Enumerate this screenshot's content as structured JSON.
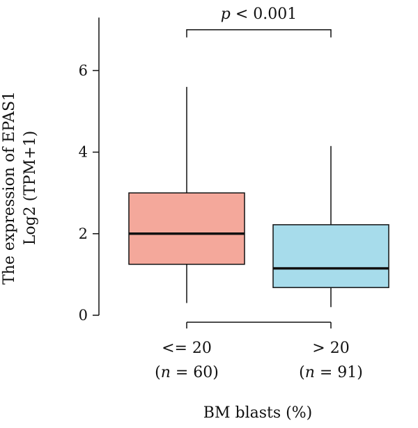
{
  "chart_data": {
    "type": "box",
    "xlabel": "BM blasts (%)",
    "ylabel_line1": "The expression of EPAS1",
    "ylabel_line2": "Log2 (TPM+1)",
    "ylim": [
      0,
      7.3
    ],
    "yticks": [
      0,
      2,
      4,
      6
    ],
    "grid": false,
    "legend": "none",
    "categories": [
      {
        "label": "<= 20",
        "n_text_prefix": "(",
        "n_symbol": "n",
        "n_text_suffix": " = 60)",
        "color": "#F4A89B",
        "whisker_low": 0.3,
        "q1": 1.25,
        "median": 2.0,
        "q3": 3.0,
        "whisker_high": 5.6
      },
      {
        "label": "> 20",
        "n_text_prefix": "(",
        "n_symbol": "n",
        "n_text_suffix": " = 91)",
        "color": "#A7DCEB",
        "whisker_low": 0.2,
        "q1": 0.68,
        "median": 1.15,
        "q3": 2.22,
        "whisker_high": 4.15
      }
    ],
    "significance": {
      "symbol": "p",
      "text": " < 0.001",
      "y": 7.0
    }
  }
}
